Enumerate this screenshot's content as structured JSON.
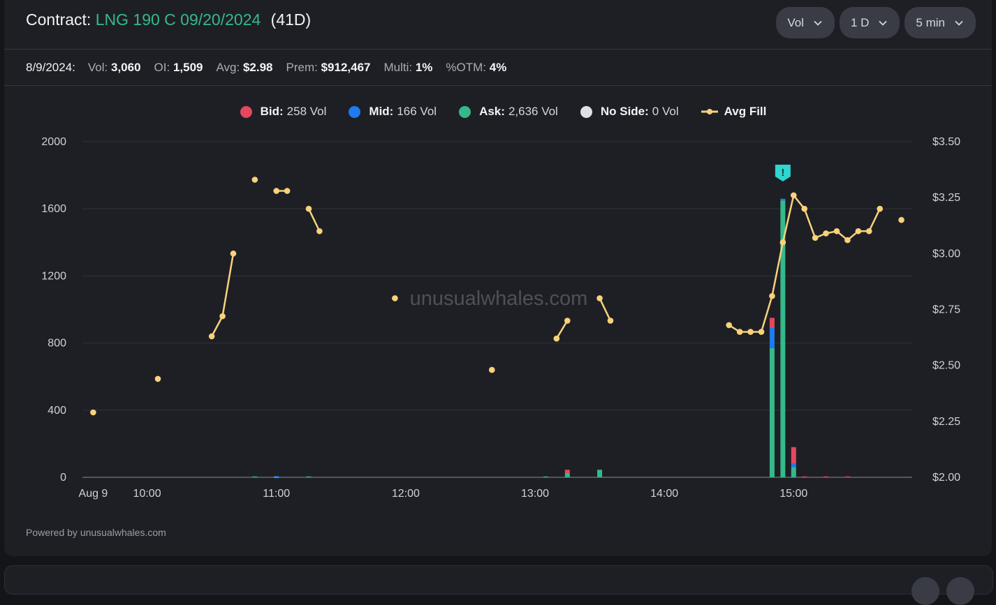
{
  "header": {
    "label": "Contract:",
    "contract": "LNG 190 C 09/20/2024",
    "dte": "(41D)",
    "dropdowns": [
      "Vol",
      "1 D",
      "5 min"
    ]
  },
  "stats": {
    "date": "8/9/2024:",
    "items": [
      {
        "k": "Vol:",
        "v": "3,060"
      },
      {
        "k": "OI:",
        "v": "1,509"
      },
      {
        "k": "Avg:",
        "v": "$2.98"
      },
      {
        "k": "Prem:",
        "v": "$912,467"
      },
      {
        "k": "Multi:",
        "v": "1%"
      },
      {
        "k": "%OTM:",
        "v": "4%"
      }
    ]
  },
  "legend": [
    {
      "label": "Bid:",
      "value": "258 Vol",
      "color": "#e5485e"
    },
    {
      "label": "Mid:",
      "value": "166 Vol",
      "color": "#1e7bf0"
    },
    {
      "label": "Ask:",
      "value": "2,636 Vol",
      "color": "#35b98a"
    },
    {
      "label": "No Side:",
      "value": "0 Vol",
      "color": "#dfe0e6"
    },
    {
      "label": "Avg Fill",
      "value": "",
      "color": "#f8d27a"
    }
  ],
  "watermark": "unusualwhales.com",
  "footer": "Powered by unusualwhales.com",
  "colors": {
    "bid": "#e5485e",
    "mid": "#1e7bf0",
    "ask": "#35b98a",
    "noside": "#dfe0e6",
    "avg": "#f8d27a",
    "alert": "#2fd5cf"
  },
  "chart_data": {
    "type": "bar",
    "x_unit": "time (5 min buckets)",
    "x_ticks": [
      "Aug 9",
      "10:00",
      "11:00",
      "12:00",
      "13:00",
      "14:00",
      "15:00"
    ],
    "y_left_ticks": [
      "0",
      "400",
      "800",
      "1200",
      "1600",
      "2000"
    ],
    "y_left_range": [
      0,
      2000
    ],
    "y_right_ticks": [
      "$2.00",
      "$2.25",
      "$2.50",
      "$2.75",
      "$3.00",
      "$3.25",
      "$3.50"
    ],
    "y_right_range": [
      2.0,
      3.5
    ],
    "volume_bars": [
      {
        "t": "10:50",
        "ask": 5,
        "bid": 0,
        "mid": 0
      },
      {
        "t": "11:00",
        "ask": 2,
        "bid": 0,
        "mid": 5
      },
      {
        "t": "11:15",
        "ask": 5,
        "bid": 0,
        "mid": 0
      },
      {
        "t": "13:05",
        "ask": 5,
        "bid": 0,
        "mid": 0
      },
      {
        "t": "13:15",
        "ask": 25,
        "bid": 20,
        "mid": 0
      },
      {
        "t": "13:30",
        "ask": 45,
        "bid": 0,
        "mid": 0
      },
      {
        "t": "14:50",
        "ask": 770,
        "bid": 60,
        "mid": 120
      },
      {
        "t": "14:55",
        "ask": 1650,
        "bid": 0,
        "mid": 10
      },
      {
        "t": "15:00",
        "ask": 60,
        "bid": 100,
        "mid": 20
      },
      {
        "t": "15:05",
        "ask": 0,
        "bid": 5,
        "mid": 0
      },
      {
        "t": "15:15",
        "ask": 0,
        "bid": 5,
        "mid": 0
      },
      {
        "t": "15:25",
        "ask": 0,
        "bid": 5,
        "mid": 0
      }
    ],
    "avg_fill_segments": [
      [
        {
          "t": "09:35",
          "y": 2.29
        }
      ],
      [
        {
          "t": "10:05",
          "y": 2.44
        }
      ],
      [
        {
          "t": "10:30",
          "y": 2.63
        },
        {
          "t": "10:35",
          "y": 2.72
        },
        {
          "t": "10:40",
          "y": 3.0
        }
      ],
      [
        {
          "t": "10:50",
          "y": 3.33
        }
      ],
      [
        {
          "t": "11:00",
          "y": 3.28
        },
        {
          "t": "11:05",
          "y": 3.28
        }
      ],
      [
        {
          "t": "11:15",
          "y": 3.2
        },
        {
          "t": "11:20",
          "y": 3.1
        }
      ],
      [
        {
          "t": "11:55",
          "y": 2.8
        }
      ],
      [
        {
          "t": "12:40",
          "y": 2.48
        }
      ],
      [
        {
          "t": "13:10",
          "y": 2.62
        },
        {
          "t": "13:15",
          "y": 2.7
        }
      ],
      [
        {
          "t": "13:30",
          "y": 2.8
        },
        {
          "t": "13:35",
          "y": 2.7
        }
      ],
      [
        {
          "t": "14:30",
          "y": 2.68
        },
        {
          "t": "14:35",
          "y": 2.65
        },
        {
          "t": "14:40",
          "y": 2.65
        },
        {
          "t": "14:45",
          "y": 2.65
        },
        {
          "t": "14:50",
          "y": 2.81
        },
        {
          "t": "14:55",
          "y": 3.05
        },
        {
          "t": "15:00",
          "y": 3.26
        },
        {
          "t": "15:05",
          "y": 3.2
        },
        {
          "t": "15:10",
          "y": 3.07
        },
        {
          "t": "15:15",
          "y": 3.09
        },
        {
          "t": "15:20",
          "y": 3.1
        },
        {
          "t": "15:25",
          "y": 3.06
        },
        {
          "t": "15:30",
          "y": 3.1
        },
        {
          "t": "15:35",
          "y": 3.1
        },
        {
          "t": "15:40",
          "y": 3.2
        }
      ],
      [
        {
          "t": "15:50",
          "y": 3.15
        }
      ]
    ],
    "alert_marker": {
      "t": "14:55",
      "symbol": "!"
    }
  }
}
